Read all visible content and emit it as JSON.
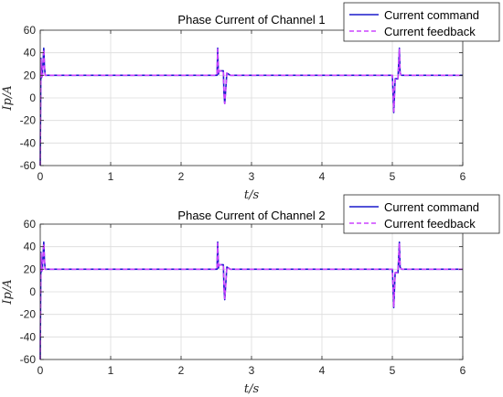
{
  "chart_data": [
    {
      "type": "line",
      "title": "Phase Current of Channel 1",
      "xlabel": "t/s",
      "ylabel": "Ip/A",
      "xlim": [
        0,
        6
      ],
      "ylim": [
        -60,
        60
      ],
      "xticks": [
        0,
        1,
        2,
        3,
        4,
        5,
        6
      ],
      "yticks": [
        -60,
        -40,
        -20,
        0,
        20,
        40,
        60
      ],
      "grid": true,
      "legend_position": "top-right outside",
      "series": [
        {
          "name": "Current command",
          "color": "#1a1acc",
          "style": "solid",
          "x": [
            0,
            0.005,
            0.01,
            0.02,
            0.03,
            0.05,
            0.06,
            0.07,
            0.09,
            2.5,
            2.51,
            2.52,
            2.53,
            2.54,
            2.56,
            2.6,
            2.61,
            2.62,
            2.65,
            2.7,
            2.8,
            5.0,
            5.01,
            5.02,
            5.04,
            5.08,
            5.1,
            5.11,
            5.13,
            5.2,
            6.0
          ],
          "y": [
            -60,
            -10,
            35,
            18,
            20,
            44,
            28,
            20,
            20,
            20,
            20,
            44,
            21,
            24,
            24,
            24,
            3,
            -5,
            22,
            20,
            20,
            20,
            5,
            -13,
            17,
            17,
            44,
            22,
            20,
            20,
            20
          ]
        },
        {
          "name": "Current feedback",
          "color": "#cc44ff",
          "style": "dashed",
          "x": [
            0,
            0.005,
            0.01,
            0.02,
            0.03,
            0.05,
            0.06,
            0.07,
            0.09,
            2.5,
            2.51,
            2.52,
            2.53,
            2.54,
            2.56,
            2.6,
            2.61,
            2.62,
            2.65,
            2.7,
            2.8,
            5.0,
            5.01,
            5.02,
            5.04,
            5.08,
            5.1,
            5.11,
            5.13,
            5.2,
            6.0
          ],
          "y": [
            -60,
            -10,
            34,
            18,
            20,
            43,
            28,
            20,
            20,
            20,
            20,
            43,
            21,
            24,
            24,
            24,
            3,
            -5,
            22,
            20,
            20,
            20,
            5,
            -12,
            17,
            17,
            43,
            22,
            20,
            20,
            20
          ]
        }
      ]
    },
    {
      "type": "line",
      "title": "Phase Current of Channel 2",
      "xlabel": "t/s",
      "ylabel": "Ip/A",
      "xlim": [
        0,
        6
      ],
      "ylim": [
        -60,
        60
      ],
      "xticks": [
        0,
        1,
        2,
        3,
        4,
        5,
        6
      ],
      "yticks": [
        -60,
        -40,
        -20,
        0,
        20,
        40,
        60
      ],
      "grid": true,
      "legend_position": "top-right outside",
      "series": [
        {
          "name": "Current command",
          "color": "#1a1acc",
          "style": "solid",
          "x": [
            0,
            0.005,
            0.01,
            0.02,
            0.03,
            0.05,
            0.06,
            0.07,
            0.09,
            2.5,
            2.51,
            2.52,
            2.53,
            2.54,
            2.56,
            2.6,
            2.61,
            2.62,
            2.65,
            2.7,
            2.8,
            5.0,
            5.01,
            5.02,
            5.04,
            5.08,
            5.1,
            5.11,
            5.13,
            5.2,
            6.0
          ],
          "y": [
            -60,
            -10,
            35,
            18,
            20,
            44,
            28,
            20,
            20,
            20,
            20,
            44,
            21,
            24,
            24,
            24,
            3,
            -7,
            22,
            20,
            20,
            20,
            5,
            -14,
            17,
            17,
            44,
            22,
            20,
            20,
            20
          ]
        },
        {
          "name": "Current feedback",
          "color": "#cc44ff",
          "style": "dashed",
          "x": [
            0,
            0.005,
            0.01,
            0.02,
            0.03,
            0.05,
            0.06,
            0.07,
            0.09,
            2.5,
            2.51,
            2.52,
            2.53,
            2.54,
            2.56,
            2.6,
            2.61,
            2.62,
            2.65,
            2.7,
            2.8,
            5.0,
            5.01,
            5.02,
            5.04,
            5.08,
            5.1,
            5.11,
            5.13,
            5.2,
            6.0
          ],
          "y": [
            -60,
            -10,
            34,
            18,
            20,
            43,
            28,
            20,
            20,
            20,
            20,
            43,
            21,
            24,
            24,
            24,
            3,
            -6,
            22,
            20,
            20,
            20,
            5,
            -13,
            17,
            17,
            43,
            22,
            20,
            20,
            20
          ]
        }
      ]
    }
  ]
}
